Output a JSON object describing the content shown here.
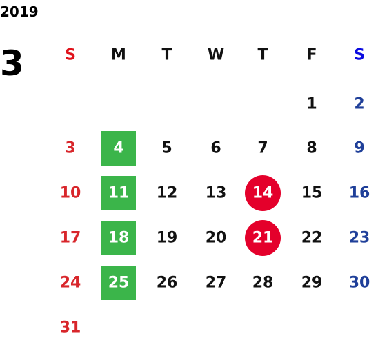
{
  "year": "2019",
  "month": "3",
  "weekdays": [
    "S",
    "M",
    "T",
    "W",
    "T",
    "F",
    "S"
  ],
  "weekday_colors": [
    "#e0121b",
    "#111111",
    "#111111",
    "#111111",
    "#111111",
    "#111111",
    "#0a0ae0"
  ],
  "day_colors": [
    "#d8262b",
    "#111111",
    "#111111",
    "#111111",
    "#111111",
    "#111111",
    "#1f3f99"
  ],
  "weeks": [
    [
      null,
      null,
      null,
      null,
      null,
      1,
      2
    ],
    [
      3,
      4,
      5,
      6,
      7,
      8,
      9
    ],
    [
      10,
      11,
      12,
      13,
      14,
      15,
      16
    ],
    [
      17,
      18,
      19,
      20,
      21,
      22,
      23
    ],
    [
      24,
      25,
      26,
      27,
      28,
      29,
      30
    ],
    [
      31,
      null,
      null,
      null,
      null,
      null,
      null
    ]
  ],
  "highlights": {
    "square": {
      "color": "#3bb54a",
      "days": [
        4,
        11,
        18,
        25
      ]
    },
    "circle": {
      "color": "#e4002b",
      "days": [
        14,
        21
      ]
    }
  }
}
